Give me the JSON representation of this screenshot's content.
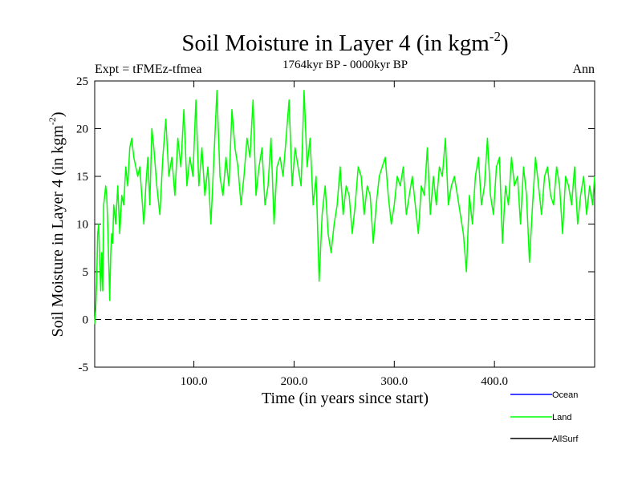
{
  "chart_data": {
    "type": "line",
    "title": "Soil Moisture in Layer 4 (in kgm",
    "title_superscript": "-2",
    "title_suffix": ")",
    "subtitle": "1764kyr BP - 0000kyr BP",
    "left_label": "Expt = tFMEz-tfmea",
    "right_label": "Ann",
    "xlabel": "Time (in years since start)",
    "ylabel": "Soil Moisture in Layer 4 (in kgm",
    "ylabel_superscript": "-2",
    "ylabel_suffix": ")",
    "xlim": [
      1,
      500
    ],
    "ylim": [
      -5,
      25
    ],
    "xticks": [
      100,
      200,
      300,
      400
    ],
    "xtick_labels": [
      "100.0",
      "200.0",
      "300.0",
      "400.0"
    ],
    "yticks": [
      -5,
      0,
      5,
      10,
      15,
      20,
      25
    ],
    "ytick_labels": [
      "-5",
      "0",
      "5",
      "10",
      "15",
      "20",
      "25"
    ],
    "reference_line": 0,
    "legend_position": "bottom-right",
    "legend": [
      {
        "name": "Ocean",
        "color": "#0000ff"
      },
      {
        "name": "Land",
        "color": "#00ff00"
      },
      {
        "name": "AllSurf",
        "color": "#000000"
      }
    ],
    "series": [
      {
        "name": "Land",
        "color": "#00ff00",
        "x": [
          1,
          2,
          3,
          4,
          5,
          6,
          7,
          8,
          9,
          10,
          11,
          12,
          13,
          14,
          15,
          16,
          17,
          18,
          19,
          20,
          22,
          24,
          26,
          28,
          30,
          32,
          34,
          36,
          38,
          40,
          42,
          44,
          46,
          48,
          50,
          52,
          54,
          56,
          58,
          60,
          63,
          66,
          69,
          72,
          75,
          78,
          81,
          84,
          87,
          90,
          93,
          96,
          99,
          102,
          105,
          108,
          111,
          114,
          117,
          120,
          123,
          126,
          129,
          132,
          135,
          138,
          141,
          144,
          147,
          150,
          153,
          156,
          159,
          162,
          165,
          168,
          171,
          174,
          177,
          180,
          183,
          186,
          189,
          192,
          195,
          198,
          201,
          204,
          207,
          210,
          213,
          216,
          219,
          222,
          225,
          228,
          231,
          234,
          237,
          240,
          243,
          246,
          249,
          252,
          255,
          258,
          261,
          264,
          267,
          270,
          273,
          276,
          279,
          282,
          285,
          288,
          291,
          294,
          297,
          300,
          303,
          306,
          309,
          312,
          315,
          318,
          321,
          324,
          327,
          330,
          333,
          336,
          339,
          342,
          345,
          348,
          351,
          354,
          357,
          360,
          363,
          366,
          369,
          372,
          375,
          378,
          381,
          384,
          387,
          390,
          393,
          396,
          399,
          402,
          405,
          408,
          411,
          414,
          417,
          420,
          423,
          426,
          429,
          432,
          435,
          438,
          441,
          444,
          447,
          450,
          453,
          456,
          459,
          462,
          465,
          468,
          471,
          474,
          477,
          480,
          483,
          486,
          489,
          492,
          495,
          498,
          500
        ],
        "values": [
          -0.5,
          1,
          4,
          9,
          10,
          6,
          3,
          7,
          3,
          12,
          13,
          14,
          13,
          10,
          6,
          2,
          7,
          9,
          8,
          12,
          10,
          14,
          9,
          13,
          12,
          16,
          14,
          18,
          19,
          17,
          16,
          15,
          16,
          13,
          10,
          14,
          17,
          12,
          20,
          18,
          14,
          11,
          17,
          21,
          15,
          17,
          13,
          19,
          16,
          22,
          14,
          17,
          15,
          23,
          14,
          18,
          13,
          16,
          10,
          17,
          24,
          15,
          13,
          17,
          14,
          22,
          18,
          16,
          12,
          15,
          19,
          17,
          23,
          13,
          16,
          18,
          12,
          14,
          19,
          10,
          16,
          17,
          15,
          19,
          23,
          14,
          18,
          16,
          14,
          24,
          16,
          19,
          12,
          15,
          4,
          11,
          14,
          9,
          7,
          10,
          12,
          16,
          11,
          14,
          13,
          9,
          12,
          16,
          15,
          11,
          14,
          13,
          8,
          12,
          15,
          16,
          17,
          13,
          10,
          12,
          15,
          14,
          16,
          11,
          13,
          15,
          12,
          9,
          14,
          13,
          18,
          11,
          15,
          12,
          16,
          15,
          19,
          12,
          14,
          15,
          13,
          11,
          9,
          5,
          13,
          10,
          15,
          17,
          12,
          14,
          19,
          13,
          11,
          16,
          17,
          8,
          14,
          12,
          17,
          14,
          15,
          10,
          16,
          13,
          6,
          12,
          17,
          14,
          11,
          15,
          16,
          13,
          12,
          16,
          14,
          9,
          15,
          14,
          12,
          16,
          10,
          13,
          15,
          11,
          14,
          12,
          15
        ]
      }
    ]
  }
}
